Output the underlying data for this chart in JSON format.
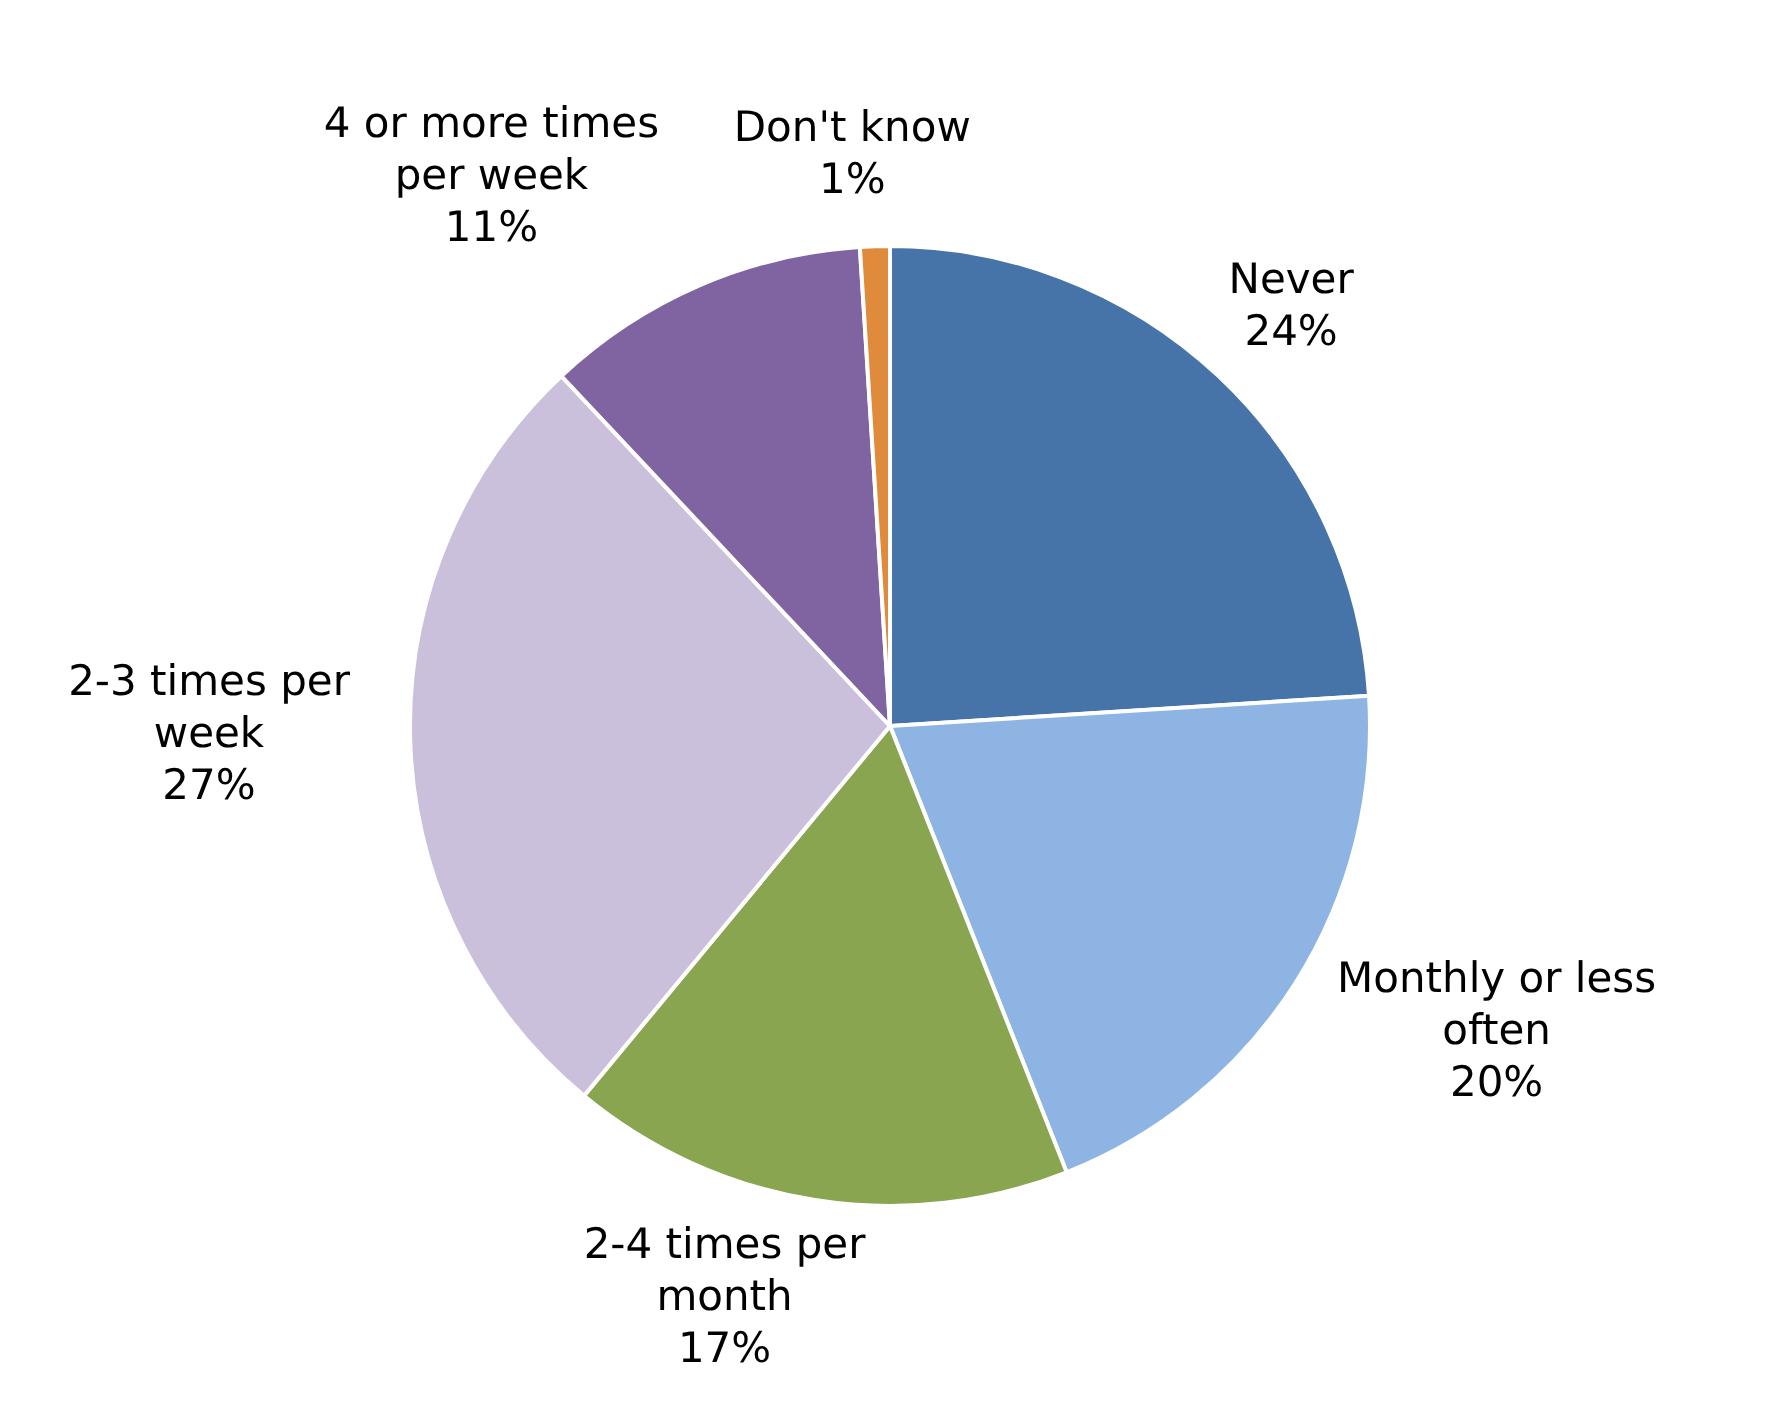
{
  "chart_data": {
    "type": "pie",
    "categories": [
      "Never",
      "Monthly or less often",
      "2-4 times per month",
      "2-3 times per week",
      "4 or more times per week",
      "Don't know"
    ],
    "values": [
      24,
      20,
      17,
      27,
      11,
      1
    ],
    "value_labels": [
      "24%",
      "20%",
      "17%",
      "27%",
      "11%",
      "1%"
    ],
    "colors": [
      "#4674a9",
      "#8eb4e3",
      "#8aa550",
      "#cbc0dc",
      "#8064a2",
      "#e08a3c"
    ]
  }
}
